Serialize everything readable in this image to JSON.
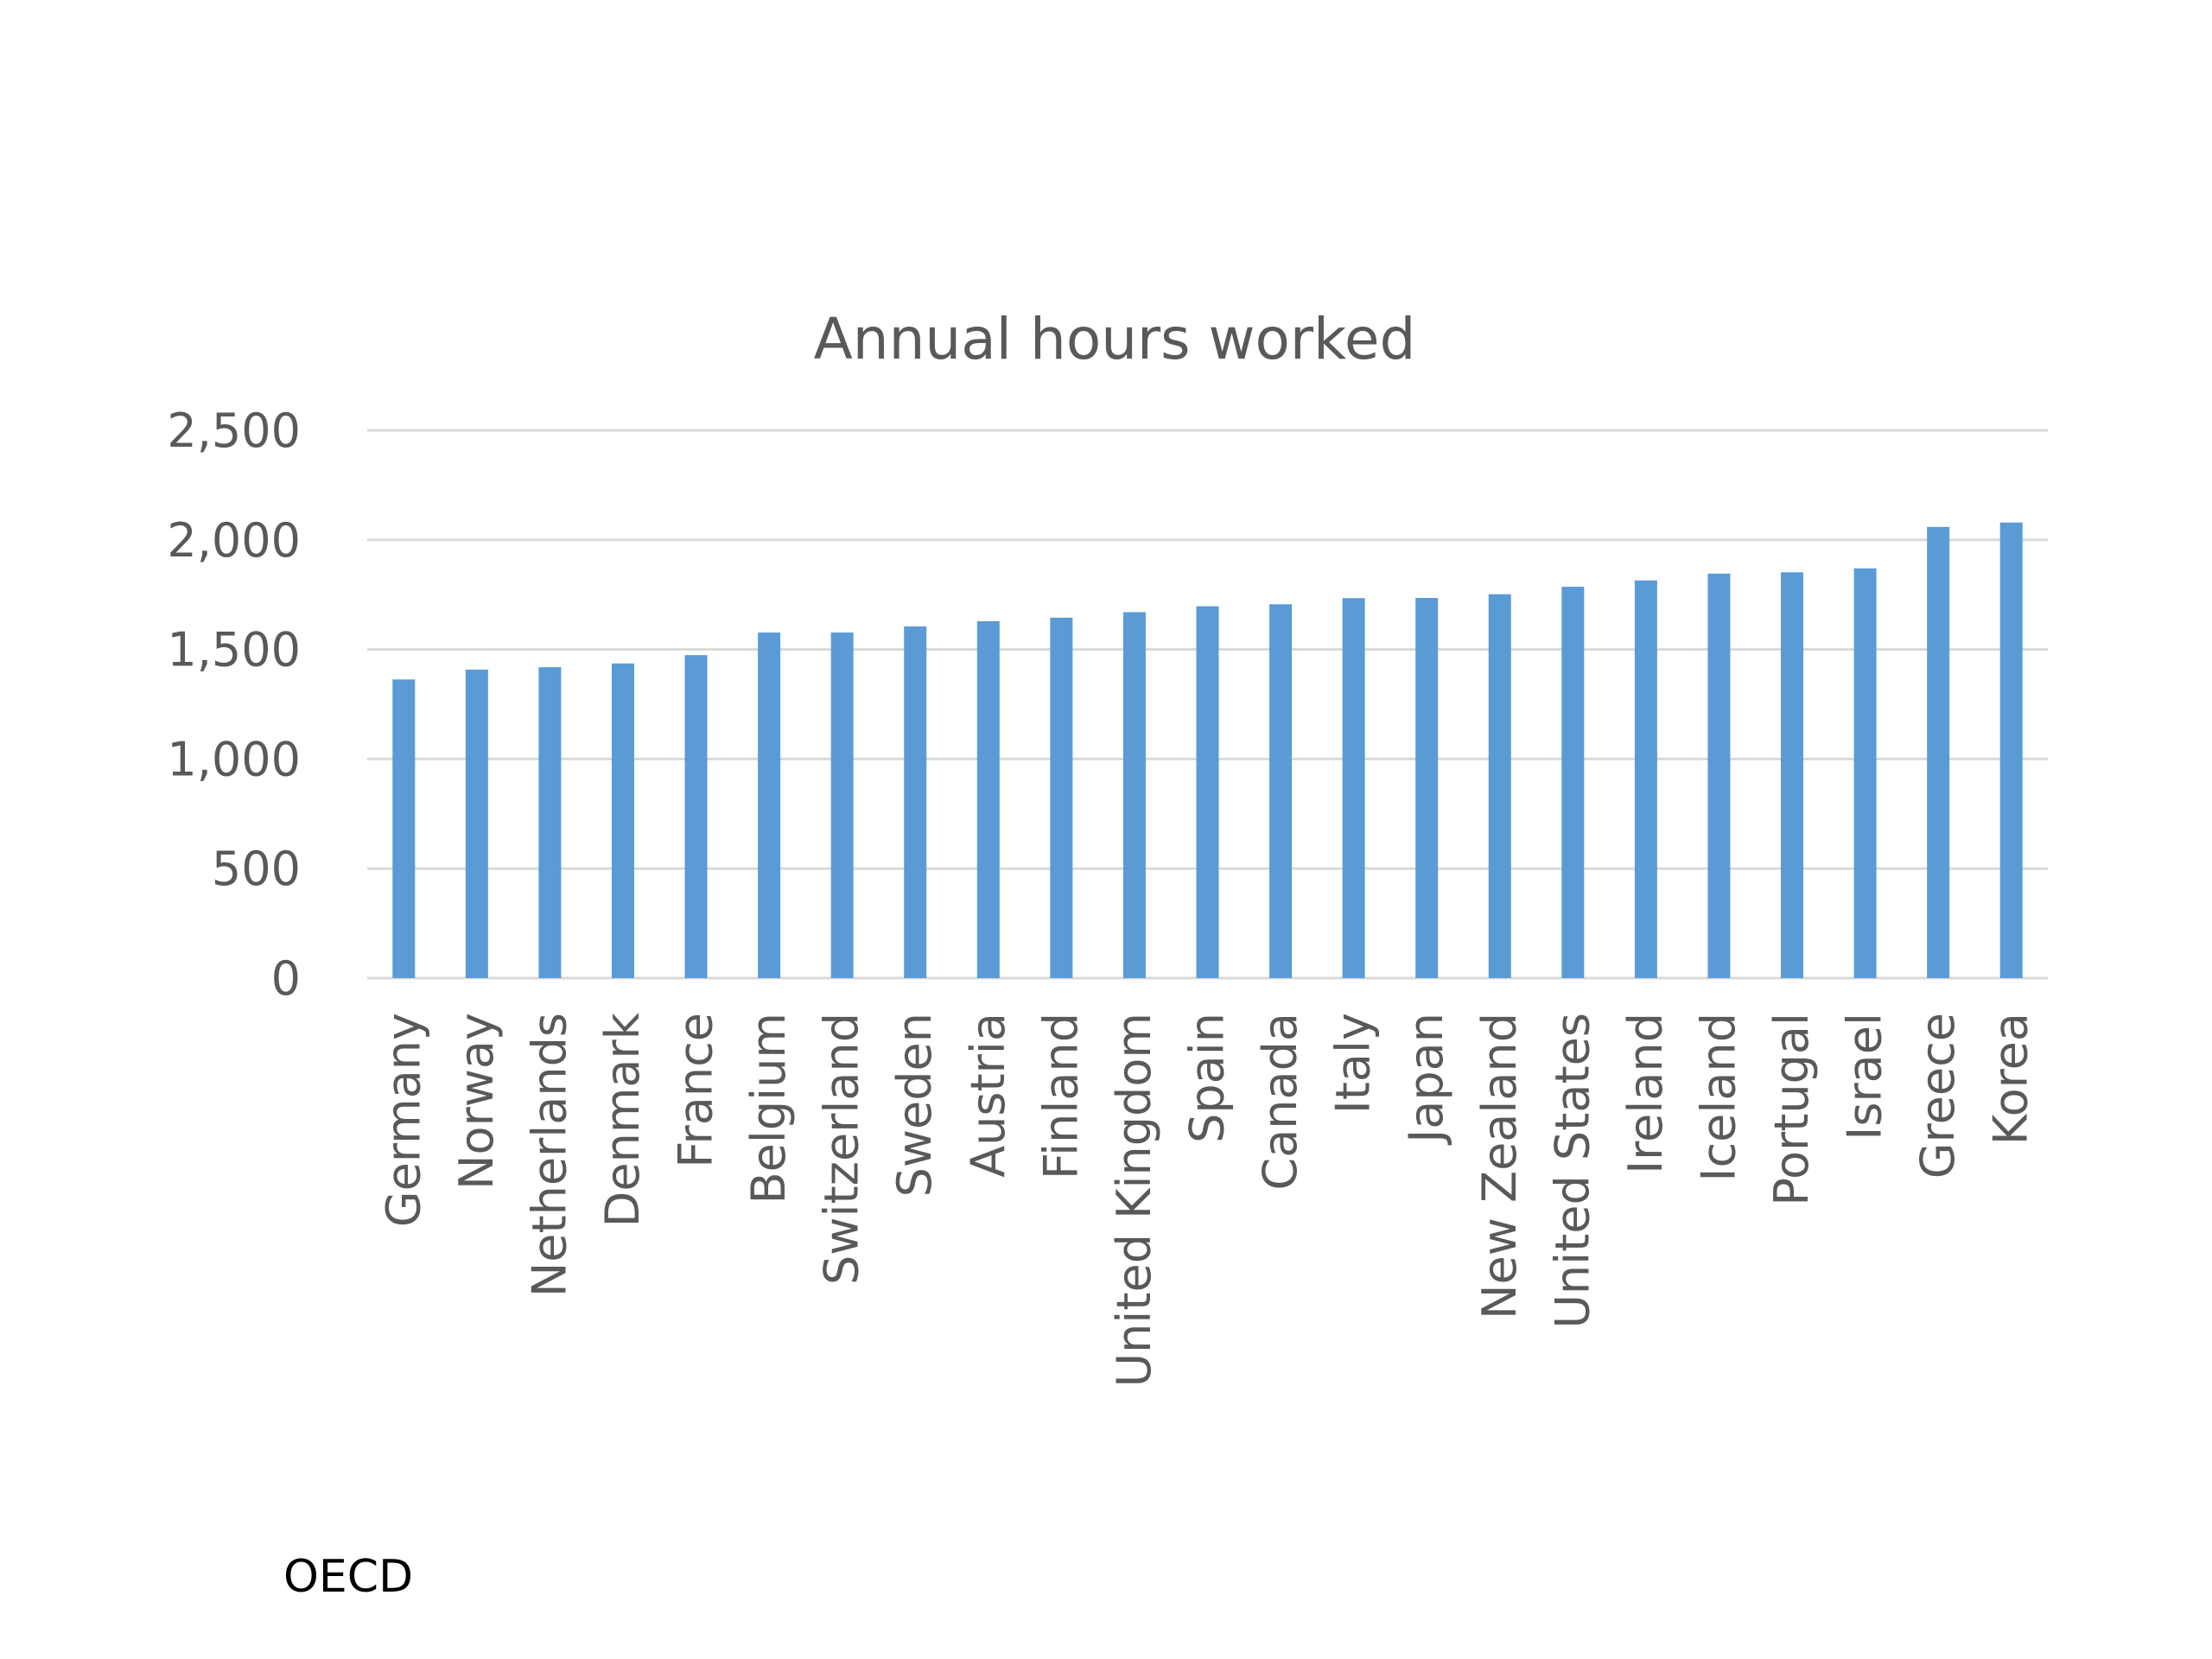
{
  "chart_data": {
    "type": "bar",
    "title": "Annual hours worked",
    "categories": [
      "Germany",
      "Norway",
      "Netherlands",
      "Denmark",
      "France",
      "Belgium",
      "Switzerland",
      "Sweden",
      "Austria",
      "Finland",
      "United Kingdom",
      "Spain",
      "Canada",
      "Italy",
      "Japan",
      "New Zealand",
      "United States",
      "Ireland",
      "Iceland",
      "Portugal",
      "Israel",
      "Greece",
      "Korea"
    ],
    "values": [
      1363,
      1408,
      1419,
      1436,
      1474,
      1577,
      1577,
      1605,
      1629,
      1645,
      1670,
      1697,
      1706,
      1734,
      1735,
      1752,
      1786,
      1815,
      1846,
      1852,
      1870,
      2059,
      2079
    ],
    "ylim": [
      0,
      2500
    ],
    "yticks": [
      0,
      500,
      1000,
      1500,
      2000,
      2500
    ],
    "ytick_labels": [
      "0",
      "500",
      "1,000",
      "1,500",
      "2,000",
      "2,500"
    ],
    "xlabel": "",
    "ylabel": "",
    "grid": true,
    "bar_color": "#5b9bd5"
  },
  "source_note": "OECD"
}
